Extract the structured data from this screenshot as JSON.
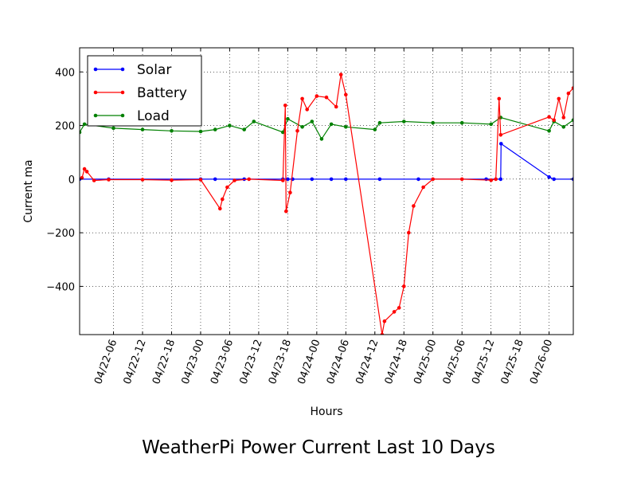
{
  "chart_data": {
    "type": "line",
    "title": "WeatherPi Power Current Last 10 Days",
    "xlabel": "Hours",
    "ylabel": "Current ma",
    "ylim": [
      -580,
      490
    ],
    "xlim": [
      "04/21/2015 23:00",
      "04/26/2015 05:00"
    ],
    "x_ticks": [
      "04/22-06",
      "04/22-12",
      "04/22-18",
      "04/23-00",
      "04/23-06",
      "04/23-12",
      "04/23-18",
      "04/24-00",
      "04/24-06",
      "04/24-12",
      "04/24-18",
      "04/25-00",
      "04/25-06",
      "04/25-12",
      "04/25-18",
      "04/26-00"
    ],
    "y_ticks": [
      400,
      200,
      0,
      -200,
      -400
    ],
    "y_tick_labels": [
      "400",
      "200",
      "0",
      "−200",
      "−400"
    ],
    "grid": true,
    "legend_position": "top-left",
    "series": [
      {
        "name": "Solar",
        "color": "#0000ff",
        "points": [
          [
            "04/21 23:00",
            0
          ],
          [
            "04/22 05:00",
            0
          ],
          [
            "04/23 00:00",
            0
          ],
          [
            "04/23 03:00",
            0
          ],
          [
            "04/23 09:00",
            0
          ],
          [
            "04/23 17:00",
            0
          ],
          [
            "04/23 18:00",
            0
          ],
          [
            "04/23 19:00",
            0
          ],
          [
            "04/23 23:00",
            0
          ],
          [
            "04/24 03:00",
            0
          ],
          [
            "04/24 06:00",
            0
          ],
          [
            "04/24 13:00",
            0
          ],
          [
            "04/24 21:00",
            0
          ],
          [
            "04/25 11:00",
            0
          ],
          [
            "04/25 14:00",
            0
          ],
          [
            "04/25 14:05",
            132
          ],
          [
            "04/26 00:00",
            8
          ],
          [
            "04/26 01:00",
            0
          ],
          [
            "04/26 05:00",
            0
          ]
        ]
      },
      {
        "name": "Battery",
        "color": "#ff0000",
        "points": [
          [
            "04/21 23:30",
            5
          ],
          [
            "04/22 00:00",
            38
          ],
          [
            "04/22 00:30",
            28
          ],
          [
            "04/22 02:00",
            -5
          ],
          [
            "04/22 05:00",
            -2
          ],
          [
            "04/22 12:00",
            -2
          ],
          [
            "04/22 18:00",
            -4
          ],
          [
            "04/23 00:00",
            -2
          ],
          [
            "04/23 04:00",
            -110
          ],
          [
            "04/23 04:30",
            -75
          ],
          [
            "04/23 05:30",
            -30
          ],
          [
            "04/23 07:00",
            -5
          ],
          [
            "04/23 10:00",
            0
          ],
          [
            "04/23 17:00",
            -5
          ],
          [
            "04/23 17:30",
            275
          ],
          [
            "04/23 17:40",
            -120
          ],
          [
            "04/23 18:30",
            -50
          ],
          [
            "04/23 20:00",
            180
          ],
          [
            "04/23 21:00",
            300
          ],
          [
            "04/23 22:00",
            260
          ],
          [
            "04/24 00:00",
            310
          ],
          [
            "04/24 02:00",
            305
          ],
          [
            "04/24 04:00",
            270
          ],
          [
            "04/24 05:00",
            390
          ],
          [
            "04/24 06:00",
            315
          ],
          [
            "04/24 13:30",
            -580
          ],
          [
            "04/24 14:00",
            -530
          ],
          [
            "04/24 16:00",
            -495
          ],
          [
            "04/24 17:00",
            -480
          ],
          [
            "04/24 18:00",
            -400
          ],
          [
            "04/24 19:00",
            -200
          ],
          [
            "04/24 20:00",
            -100
          ],
          [
            "04/24 22:00",
            -30
          ],
          [
            "04/25 00:00",
            0
          ],
          [
            "04/25 06:00",
            0
          ],
          [
            "04/25 12:00",
            -4
          ],
          [
            "04/25 13:00",
            0
          ],
          [
            "04/25 13:40",
            300
          ],
          [
            "04/25 14:00",
            165
          ],
          [
            "04/26 00:00",
            232
          ],
          [
            "04/26 01:00",
            220
          ],
          [
            "04/26 02:00",
            300
          ],
          [
            "04/26 03:00",
            230
          ],
          [
            "04/26 04:00",
            320
          ],
          [
            "04/26 05:00",
            340
          ]
        ]
      },
      {
        "name": "Load",
        "color": "#008000",
        "points": [
          [
            "04/21 23:00",
            175
          ],
          [
            "04/22 00:00",
            205
          ],
          [
            "04/22 06:00",
            190
          ],
          [
            "04/22 12:00",
            185
          ],
          [
            "04/22 18:00",
            180
          ],
          [
            "04/23 00:00",
            178
          ],
          [
            "04/23 03:00",
            185
          ],
          [
            "04/23 06:00",
            200
          ],
          [
            "04/23 09:00",
            185
          ],
          [
            "04/23 11:00",
            215
          ],
          [
            "04/23 17:00",
            175
          ],
          [
            "04/23 18:00",
            225
          ],
          [
            "04/23 21:00",
            195
          ],
          [
            "04/23 23:00",
            215
          ],
          [
            "04/24 01:00",
            150
          ],
          [
            "04/24 03:00",
            205
          ],
          [
            "04/24 06:00",
            195
          ],
          [
            "04/24 12:00",
            185
          ],
          [
            "04/24 13:00",
            210
          ],
          [
            "04/24 18:00",
            215
          ],
          [
            "04/25 00:00",
            210
          ],
          [
            "04/25 06:00",
            210
          ],
          [
            "04/25 12:00",
            205
          ],
          [
            "04/25 14:00",
            230
          ],
          [
            "04/26 00:00",
            180
          ],
          [
            "04/26 01:00",
            215
          ],
          [
            "04/26 03:00",
            195
          ],
          [
            "04/26 05:00",
            220
          ]
        ]
      }
    ]
  }
}
